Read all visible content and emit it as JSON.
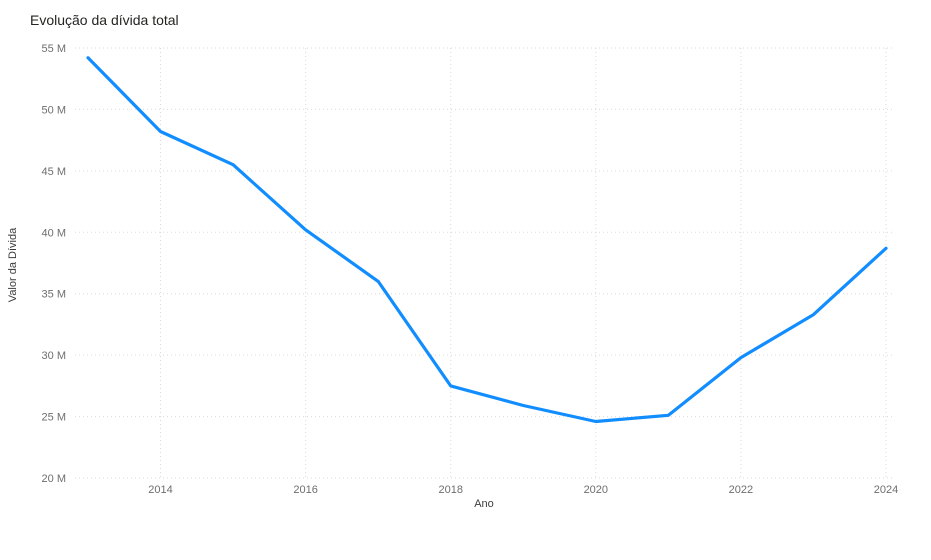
{
  "chart_data": {
    "type": "line",
    "title": "Evolução da dívida total",
    "xlabel": "Ano",
    "ylabel": "Valor da Dívida",
    "unit": "M",
    "x": [
      2013,
      2014,
      2015,
      2016,
      2017,
      2018,
      2019,
      2020,
      2021,
      2022,
      2023,
      2024
    ],
    "values": [
      54.2,
      48.2,
      45.5,
      40.2,
      36.0,
      27.5,
      25.9,
      24.6,
      25.1,
      29.8,
      33.3,
      38.7
    ],
    "xlim": [
      2013,
      2024
    ],
    "ylim": [
      20,
      55
    ],
    "y_ticks": [
      {
        "value": 55,
        "label": "55 M"
      },
      {
        "value": 50,
        "label": "50 M"
      },
      {
        "value": 45,
        "label": "45 M"
      },
      {
        "value": 40,
        "label": "40 M"
      },
      {
        "value": 35,
        "label": "35 M"
      },
      {
        "value": 30,
        "label": "30 M"
      },
      {
        "value": 25,
        "label": "25 M"
      },
      {
        "value": 20,
        "label": "20 M"
      }
    ],
    "x_ticks": [
      {
        "value": 2014,
        "label": "2014"
      },
      {
        "value": 2016,
        "label": "2016"
      },
      {
        "value": 2018,
        "label": "2018"
      },
      {
        "value": 2020,
        "label": "2020"
      },
      {
        "value": 2022,
        "label": "2022"
      },
      {
        "value": 2024,
        "label": "2024"
      }
    ],
    "grid": "dotted",
    "legend": "none",
    "colors": {
      "line": "#118DFF",
      "grid": "#d9d9d9",
      "title": "#252423",
      "axis_title": "#3d3d3d",
      "tick_label": "#6e6e6e",
      "background": "#ffffff"
    }
  }
}
